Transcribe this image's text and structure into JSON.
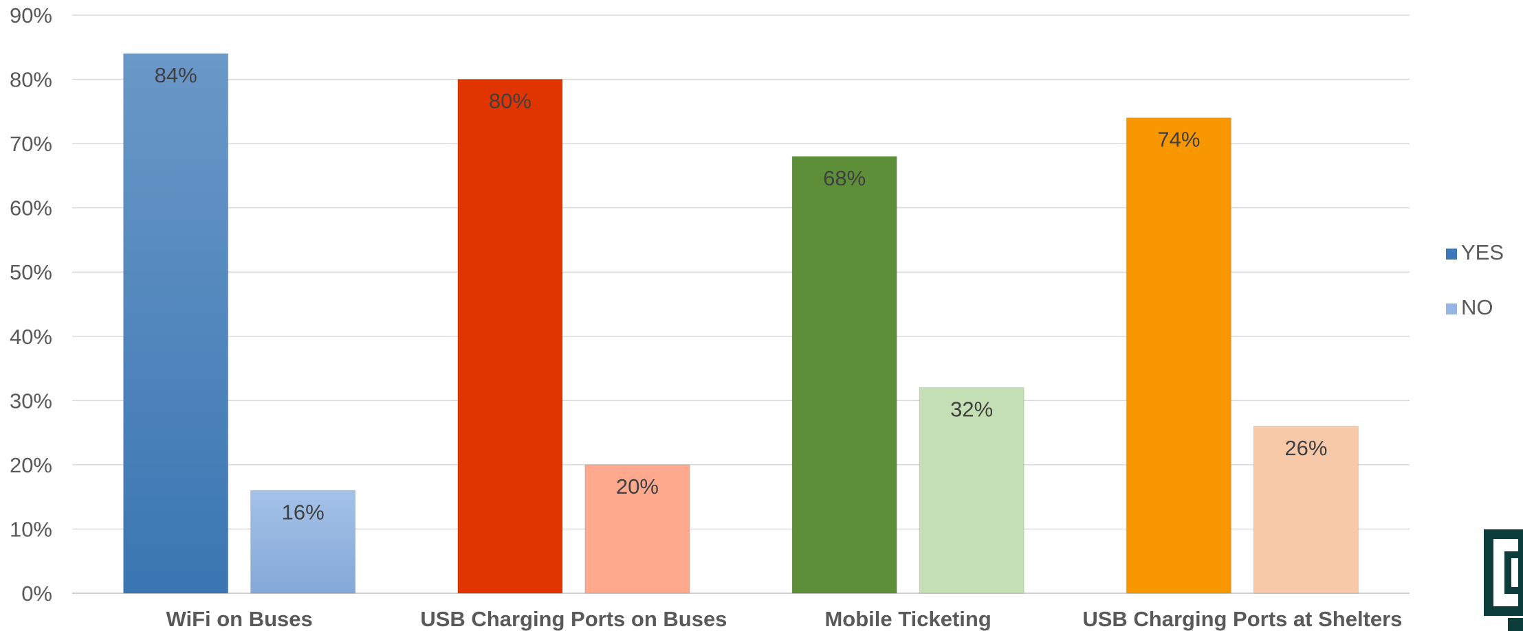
{
  "chart_data": {
    "type": "bar",
    "categories": [
      "WiFi on Buses",
      "USB Charging Ports on Buses",
      "Mobile Ticketing",
      "USB Charging Ports at Shelters"
    ],
    "series": [
      {
        "name": "YES",
        "values": [
          84,
          80,
          68,
          74
        ],
        "colors": [
          "#4a7fb8",
          "#e03500",
          "#5c8f38",
          "#f99700"
        ],
        "legend_color": "#3b78b5"
      },
      {
        "name": "NO",
        "values": [
          16,
          20,
          32,
          26
        ],
        "colors": [
          "#93b5df",
          "#fea98e",
          "#c4dfb3",
          "#f7c9a9"
        ],
        "legend_color": "#94b6e0"
      }
    ],
    "data_labels": [
      [
        "84%",
        "80%",
        "68%",
        "74%"
      ],
      [
        "16%",
        "20%",
        "32%",
        "26%"
      ]
    ],
    "ylim": [
      0,
      90
    ],
    "yticks": [
      0,
      10,
      20,
      30,
      40,
      50,
      60,
      70,
      80,
      90
    ],
    "ytick_labels": [
      "0%",
      "10%",
      "20%",
      "30%",
      "40%",
      "50%",
      "60%",
      "70%",
      "80%",
      "90%"
    ],
    "grid": true,
    "legend_position": "right",
    "title": "",
    "xlabel": "",
    "ylabel": ""
  },
  "logo": {
    "name": "corner-logo",
    "color": "#0d3d3a"
  }
}
